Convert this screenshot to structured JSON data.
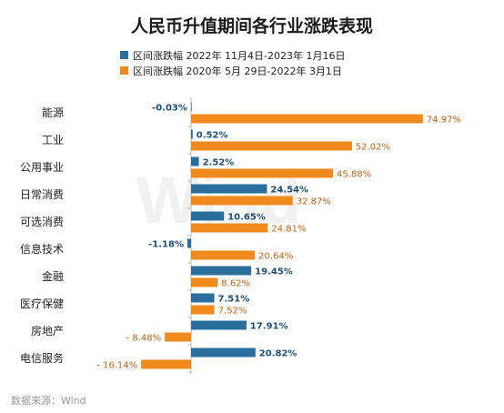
{
  "chart_data": {
    "type": "bar",
    "orientation": "horizontal",
    "title": "人民币升值期间各行业涨跌表现",
    "categories": [
      "能源",
      "工业",
      "公用事业",
      "日常消费",
      "可选消费",
      "信息技术",
      "金融",
      "医疗保健",
      "房地产",
      "电信服务"
    ],
    "series": [
      {
        "name": "区间涨跌幅 2022年 11月4日-2023年 1月16日",
        "color": "#2a6e9e",
        "values": [
          -0.03,
          0.52,
          2.52,
          24.54,
          10.65,
          -1.18,
          19.45,
          7.51,
          17.91,
          20.82
        ],
        "labels": [
          "-0.03%",
          "0.52%",
          "2.52%",
          "24.54%",
          "10.65%",
          "-1.18%",
          "19.45%",
          "7.51%",
          "17.91%",
          "20.82%"
        ]
      },
      {
        "name": "区间涨跌幅 2020年 5月 29日-2022年 3月1日",
        "color": "#f08a1d",
        "values": [
          74.97,
          52.02,
          45.88,
          32.87,
          24.81,
          20.64,
          8.62,
          7.52,
          -8.48,
          -16.14
        ],
        "labels": [
          "74.97%",
          "52.02%",
          "45.88%",
          "32.87%",
          "24.81%",
          "20.64%",
          "8.62%",
          "7.52%",
          "- 8.48%",
          "- 16.14%"
        ]
      }
    ],
    "legend_position": "top",
    "grid": false
  },
  "source": "数据来源：Wind",
  "watermark": "Wind"
}
